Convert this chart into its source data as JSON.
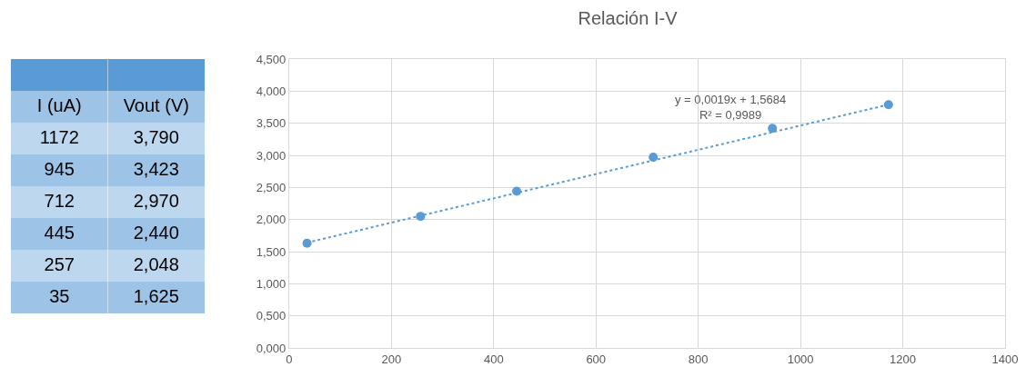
{
  "chart_data": [
    {
      "type": "other",
      "annotations": [
        "I (uA)",
        "Vout (V)",
        "1172",
        "3,790",
        "945",
        "3,423",
        "712",
        "2,970",
        "445",
        "2,440",
        "257",
        "2,048",
        "35",
        "1,625"
      ]
    },
    {
      "type": "scatter",
      "title": "Relación I-V",
      "x": [
        1172,
        945,
        712,
        445,
        257,
        35
      ],
      "series": [
        {
          "type": "scatter",
          "color": "#5b9bd5",
          "values": [
            3.79,
            3.42,
            2.97,
            2.44,
            2.05,
            1.63
          ],
          "marker": "circle"
        },
        {
          "type": "line",
          "color": "#5b9bd5",
          "x": [
            35,
            1172
          ],
          "values": [
            1.64,
            3.79
          ],
          "line_style": "dotted",
          "marker": "none"
        }
      ],
      "annotations": [
        "y = 0,0019x + 1,5684\nR² = 0,9989"
      ],
      "xlim": [
        0,
        1400
      ],
      "xticks": [
        0,
        200,
        400,
        600,
        800,
        1000,
        1200,
        1400
      ],
      "ylim": [
        0,
        4.5
      ],
      "yticks": [
        {
          "value": 0,
          "label": "0,000"
        },
        {
          "value": 0.5,
          "label": "0,500"
        },
        {
          "value": 1,
          "label": "1,000"
        },
        {
          "value": 1.5,
          "label": "1,500"
        },
        {
          "value": 2,
          "label": "2,000"
        },
        {
          "value": 2.5,
          "label": "2,500"
        },
        {
          "value": 3,
          "label": "3,000"
        },
        {
          "value": 3.5,
          "label": "3,500"
        },
        {
          "value": 4,
          "label": "4,000"
        },
        {
          "value": 4.5,
          "label": "4,500"
        }
      ],
      "grid": true
    }
  ]
}
